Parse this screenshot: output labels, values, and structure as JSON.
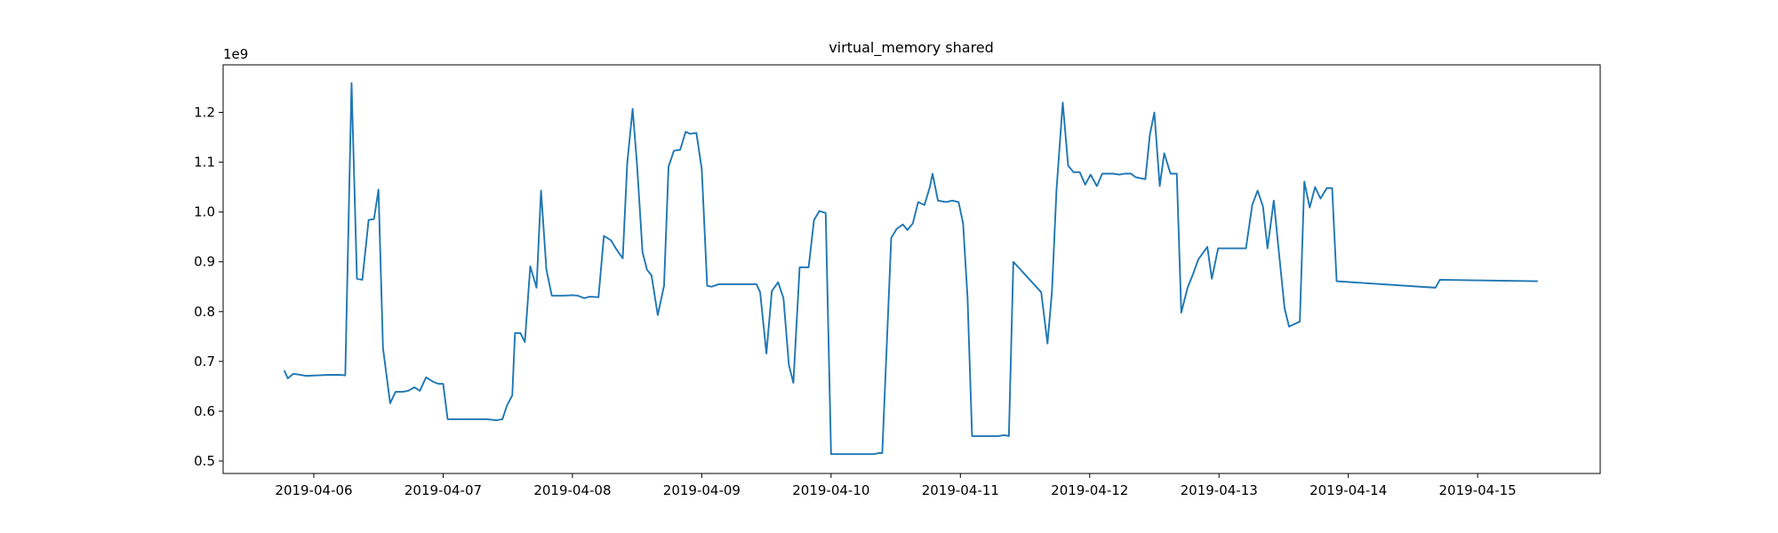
{
  "chart_data": {
    "type": "line",
    "title": "virtual_memory shared",
    "y_offset_label": "1e9",
    "color": "#1f77b4",
    "x": [
      "2019-04-05 18:30",
      "2019-04-05 19:10",
      "2019-04-05 20:10",
      "2019-04-05 21:30",
      "2019-04-05 22:30",
      "2019-04-06 00:40",
      "2019-04-06 02:40",
      "2019-04-06 04:50",
      "2019-04-06 05:50",
      "2019-04-06 07:00",
      "2019-04-06 08:00",
      "2019-04-06 09:00",
      "2019-04-06 10:10",
      "2019-04-06 11:10",
      "2019-04-06 12:00",
      "2019-04-06 12:50",
      "2019-04-06 14:10",
      "2019-04-06 15:10",
      "2019-04-06 16:30",
      "2019-04-06 17:30",
      "2019-04-06 18:40",
      "2019-04-06 19:40",
      "2019-04-06 20:50",
      "2019-04-06 22:10",
      "2019-04-06 23:10",
      "2019-04-07 00:00",
      "2019-04-07 00:50",
      "2019-04-07 04:00",
      "2019-04-07 08:10",
      "2019-04-07 09:50",
      "2019-04-07 11:00",
      "2019-04-07 11:50",
      "2019-04-07 12:50",
      "2019-04-07 13:20",
      "2019-04-07 14:20",
      "2019-04-07 15:10",
      "2019-04-07 16:10",
      "2019-04-07 17:20",
      "2019-04-07 18:10",
      "2019-04-07 19:10",
      "2019-04-07 20:10",
      "2019-04-07 22:20",
      "2019-04-08 00:00",
      "2019-04-08 01:00",
      "2019-04-08 02:10",
      "2019-04-08 03:10",
      "2019-04-08 04:50",
      "2019-04-08 05:50",
      "2019-04-08 07:10",
      "2019-04-08 08:10",
      "2019-04-08 09:20",
      "2019-04-08 10:10",
      "2019-04-08 11:10",
      "2019-04-08 12:00",
      "2019-04-08 13:00",
      "2019-04-08 13:50",
      "2019-04-08 14:40",
      "2019-04-08 15:50",
      "2019-04-08 17:00",
      "2019-04-08 17:50",
      "2019-04-08 18:50",
      "2019-04-08 20:00",
      "2019-04-08 21:00",
      "2019-04-08 21:50",
      "2019-04-08 23:00",
      "2019-04-09 00:00",
      "2019-04-09 01:00",
      "2019-04-09 01:50",
      "2019-04-09 03:10",
      "2019-04-09 05:30",
      "2019-04-09 08:40",
      "2019-04-09 10:10",
      "2019-04-09 10:50",
      "2019-04-09 12:00",
      "2019-04-09 13:00",
      "2019-04-09 14:10",
      "2019-04-09 15:10",
      "2019-04-09 16:10",
      "2019-04-09 17:00",
      "2019-04-09 18:10",
      "2019-04-09 19:50",
      "2019-04-09 20:50",
      "2019-04-09 21:50",
      "2019-04-09 23:00",
      "2019-04-10 00:00",
      "2019-04-10 05:40",
      "2019-04-10 08:00",
      "2019-04-10 08:50",
      "2019-04-10 09:30",
      "2019-04-10 11:10",
      "2019-04-10 12:10",
      "2019-04-10 13:20",
      "2019-04-10 14:10",
      "2019-04-10 15:10",
      "2019-04-10 16:10",
      "2019-04-10 17:20",
      "2019-04-10 18:20",
      "2019-04-10 18:50",
      "2019-04-10 19:50",
      "2019-04-10 21:20",
      "2019-04-10 22:30",
      "2019-04-10 23:40",
      "2019-04-11 00:30",
      "2019-04-11 01:20",
      "2019-04-11 02:10",
      "2019-04-11 04:50",
      "2019-04-11 07:00",
      "2019-04-11 08:10",
      "2019-04-11 09:00",
      "2019-04-11 09:50",
      "2019-04-11 15:00",
      "2019-04-11 16:10",
      "2019-04-11 17:00",
      "2019-04-11 17:50",
      "2019-04-11 19:00",
      "2019-04-11 20:00",
      "2019-04-11 21:00",
      "2019-04-11 22:10",
      "2019-04-11 23:10",
      "2019-04-12 00:10",
      "2019-04-12 01:20",
      "2019-04-12 02:20",
      "2019-04-12 04:20",
      "2019-04-12 05:30",
      "2019-04-12 06:30",
      "2019-04-12 07:40",
      "2019-04-12 08:30",
      "2019-04-12 09:20",
      "2019-04-12 10:20",
      "2019-04-12 11:10",
      "2019-04-12 12:00",
      "2019-04-12 13:00",
      "2019-04-12 13:50",
      "2019-04-12 15:00",
      "2019-04-12 16:10",
      "2019-04-12 17:00",
      "2019-04-12 18:10",
      "2019-04-12 19:10",
      "2019-04-12 20:10",
      "2019-04-12 21:50",
      "2019-04-12 22:40",
      "2019-04-12 23:50",
      "2019-04-13 01:00",
      "2019-04-13 05:00",
      "2019-04-13 06:10",
      "2019-04-13 07:10",
      "2019-04-13 08:10",
      "2019-04-13 09:00",
      "2019-04-13 10:10",
      "2019-04-13 11:00",
      "2019-04-13 12:10",
      "2019-04-13 13:00",
      "2019-04-13 15:00",
      "2019-04-13 15:50",
      "2019-04-13 16:50",
      "2019-04-13 17:50",
      "2019-04-13 18:50",
      "2019-04-13 20:00",
      "2019-04-13 21:00",
      "2019-04-13 21:50",
      "2019-04-14 16:10",
      "2019-04-14 17:00",
      "2019-04-15 11:10"
    ],
    "values": [
      0.682,
      0.666,
      0.675,
      0.673,
      0.671,
      0.672,
      0.673,
      0.673,
      0.672,
      1.259,
      0.866,
      0.864,
      0.984,
      0.986,
      1.045,
      0.727,
      0.616,
      0.639,
      0.639,
      0.641,
      0.648,
      0.641,
      0.668,
      0.659,
      0.655,
      0.655,
      0.584,
      0.584,
      0.584,
      0.582,
      0.584,
      0.611,
      0.632,
      0.757,
      0.757,
      0.739,
      0.891,
      0.848,
      1.043,
      0.884,
      0.832,
      0.832,
      0.833,
      0.832,
      0.827,
      0.83,
      0.829,
      0.952,
      0.943,
      0.925,
      0.907,
      1.098,
      1.207,
      1.093,
      0.92,
      0.884,
      0.873,
      0.793,
      0.852,
      1.091,
      1.123,
      1.125,
      1.161,
      1.157,
      1.159,
      1.086,
      0.852,
      0.85,
      0.855,
      0.855,
      0.855,
      0.855,
      0.839,
      0.716,
      0.841,
      0.859,
      0.827,
      0.693,
      0.657,
      0.889,
      0.889,
      0.984,
      1.002,
      0.998,
      0.514,
      0.514,
      0.514,
      0.516,
      0.516,
      0.948,
      0.966,
      0.975,
      0.964,
      0.977,
      1.02,
      1.014,
      1.05,
      1.077,
      1.023,
      1.02,
      1.023,
      1.02,
      0.977,
      0.827,
      0.55,
      0.55,
      0.55,
      0.552,
      0.55,
      0.9,
      0.839,
      0.736,
      0.841,
      1.043,
      1.22,
      1.093,
      1.08,
      1.08,
      1.055,
      1.075,
      1.052,
      1.077,
      1.077,
      1.075,
      1.077,
      1.077,
      1.07,
      1.068,
      1.066,
      1.155,
      1.2,
      1.052,
      1.118,
      1.077,
      1.077,
      0.798,
      0.848,
      0.875,
      0.905,
      0.93,
      0.866,
      0.927,
      0.927,
      0.927,
      1.014,
      1.043,
      1.011,
      0.927,
      1.023,
      0.932,
      0.807,
      0.77,
      0.78,
      1.061,
      1.009,
      1.05,
      1.027,
      1.048,
      1.048,
      0.861,
      0.848,
      0.864,
      0.861
    ],
    "xlim": [
      "2019-04-05 07:10",
      "2019-04-15 22:45"
    ],
    "xticks": [
      "2019-04-06",
      "2019-04-07",
      "2019-04-08",
      "2019-04-09",
      "2019-04-10",
      "2019-04-11",
      "2019-04-12",
      "2019-04-13",
      "2019-04-14",
      "2019-04-15"
    ],
    "ylim": [
      0.475,
      1.2955
    ],
    "yticks": [
      0.5,
      0.6,
      0.7,
      0.8,
      0.9,
      {
        "value": 1,
        "label": "1.0"
      },
      1.1,
      1.2
    ]
  }
}
